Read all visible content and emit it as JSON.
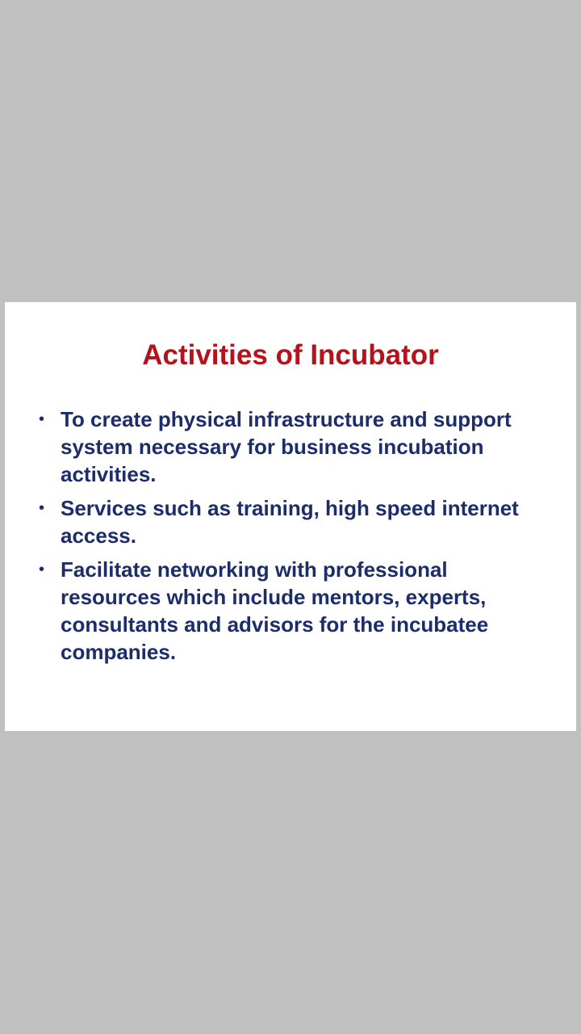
{
  "slide": {
    "title": "Activities of Incubator",
    "bullet_symbol": "•",
    "bullets": [
      "To create physical infrastructure and support system necessary for business incubation activities.",
      "Services such as training, high speed internet access.",
      "Facilitate networking with professional resources which include mentors, experts, consultants and advisors for the incubatee companies."
    ]
  },
  "colors": {
    "background": "#c0c0c0",
    "slide": "#ffffff",
    "title": "#b5121b",
    "body_text": "#1b2d6b"
  }
}
